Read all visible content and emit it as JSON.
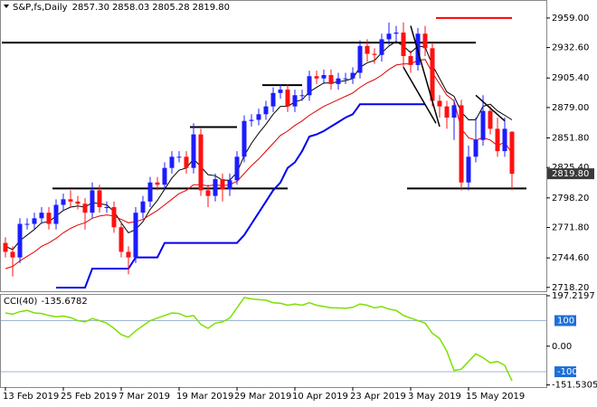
{
  "chart_data": [
    {
      "type": "candlestick",
      "symbol": "S&P,fs,Daily",
      "header_ohlc": [
        "2857.30",
        "2858.03",
        "2805.28",
        "2819.80"
      ],
      "last_label": "2819.80",
      "up_color": "#1c1cff",
      "down_color": "#ff1010",
      "categories": [
        "13 Feb 2019",
        null,
        null,
        null,
        null,
        null,
        null,
        null,
        "25 Feb 2019",
        null,
        null,
        null,
        null,
        null,
        null,
        null,
        "7 Mar 2019",
        null,
        null,
        null,
        null,
        null,
        null,
        null,
        "19 Mar 2019",
        null,
        null,
        null,
        null,
        null,
        null,
        null,
        "29 Mar 2019",
        null,
        null,
        null,
        null,
        null,
        null,
        null,
        "10 Apr 2019",
        null,
        null,
        null,
        null,
        null,
        null,
        null,
        "23 Apr 2019",
        null,
        null,
        null,
        null,
        null,
        null,
        null,
        "3 May 2019",
        null,
        null,
        null,
        null,
        null,
        null,
        null,
        "15 May 2019",
        null,
        null,
        null,
        null,
        null,
        null
      ],
      "open": [
        2758,
        2750,
        2745,
        2775,
        2775,
        2780,
        2785,
        2775,
        2792,
        2797,
        2795,
        2793,
        2785,
        2805,
        2790,
        2790,
        2772,
        2750,
        2745,
        2785,
        2795,
        2812,
        2810,
        2825,
        2835,
        2835,
        2825,
        2855,
        2805,
        2800,
        2815,
        2806,
        2814,
        2835,
        2867,
        2868,
        2873,
        2880,
        2892,
        2895,
        2880,
        2890,
        2890,
        2907,
        2905,
        2908,
        2900,
        2905,
        2905,
        2910,
        2934,
        2927,
        2926,
        2940,
        2945,
        2946,
        2925,
        2917,
        2945,
        2932,
        2885,
        2880,
        2870,
        2881,
        2812,
        2835,
        2850,
        2876,
        2860,
        2840,
        2857.3
      ],
      "high": [
        2763,
        2755,
        2780,
        2780,
        2785,
        2790,
        2790,
        2797,
        2802,
        2805,
        2800,
        2798,
        2812,
        2810,
        2795,
        2795,
        2777,
        2755,
        2790,
        2800,
        2817,
        2817,
        2830,
        2840,
        2840,
        2840,
        2865,
        2860,
        2810,
        2820,
        2820,
        2820,
        2840,
        2872,
        2873,
        2878,
        2885,
        2897,
        2900,
        2900,
        2895,
        2895,
        2912,
        2912,
        2913,
        2913,
        2910,
        2910,
        2915,
        2939,
        2940,
        2932,
        2945,
        2955,
        2952,
        2955,
        2930,
        2950,
        2952,
        2937,
        2890,
        2885,
        2886,
        2886,
        2845,
        2870,
        2890,
        2880,
        2870,
        2870,
        2858.03
      ],
      "low": [
        2745,
        2728,
        2740,
        2770,
        2770,
        2775,
        2770,
        2770,
        2787,
        2790,
        2788,
        2770,
        2780,
        2785,
        2785,
        2767,
        2745,
        2730,
        2740,
        2780,
        2790,
        2805,
        2805,
        2820,
        2830,
        2820,
        2820,
        2800,
        2790,
        2795,
        2795,
        2800,
        2810,
        2830,
        2862,
        2863,
        2868,
        2875,
        2887,
        2875,
        2875,
        2885,
        2885,
        2900,
        2900,
        2895,
        2895,
        2900,
        2900,
        2905,
        2920,
        2918,
        2920,
        2935,
        2938,
        2915,
        2910,
        2912,
        2925,
        2880,
        2870,
        2860,
        2850,
        2805,
        2805,
        2830,
        2845,
        2855,
        2835,
        2835,
        2805.28
      ],
      "close": [
        2750,
        2745,
        2775,
        2775,
        2780,
        2785,
        2775,
        2792,
        2797,
        2795,
        2793,
        2785,
        2805,
        2790,
        2790,
        2772,
        2750,
        2745,
        2785,
        2795,
        2812,
        2810,
        2825,
        2835,
        2835,
        2825,
        2855,
        2805,
        2800,
        2815,
        2806,
        2814,
        2835,
        2867,
        2868,
        2873,
        2880,
        2892,
        2895,
        2880,
        2890,
        2890,
        2907,
        2905,
        2908,
        2900,
        2905,
        2905,
        2910,
        2934,
        2927,
        2926,
        2940,
        2945,
        2946,
        2925,
        2917,
        2945,
        2932,
        2885,
        2880,
        2870,
        2881,
        2812,
        2835,
        2850,
        2876,
        2860,
        2840,
        2860,
        2819.8
      ],
      "series": [
        {
          "color": "#000000",
          "width": 1,
          "values": [
            2755,
            2752,
            2760,
            2765,
            2770,
            2776,
            2777,
            2782,
            2787,
            2790,
            2791,
            2790,
            2794,
            2793,
            2792,
            2786,
            2776,
            2767,
            2770,
            2777,
            2788,
            2796,
            2806,
            2816,
            2823,
            2825,
            2833,
            2826,
            2819,
            2818,
            2814,
            2814,
            2821,
            2836,
            2847,
            2856,
            2864,
            2873,
            2880,
            2880,
            2884,
            2886,
            2893,
            2897,
            2901,
            2901,
            2902,
            2903,
            2905,
            2915,
            2919,
            2921,
            2928,
            2934,
            2938,
            2934,
            2928,
            2934,
            2933,
            2917,
            2905,
            2893,
            2889,
            2875,
            2868,
            2868,
            2880,
            2882,
            2876,
            2872,
            2868
          ]
        },
        {
          "color": "#e00000",
          "width": 1,
          "values": [
            2735,
            2737,
            2742,
            2746,
            2750,
            2755,
            2758,
            2762,
            2767,
            2771,
            2774,
            2776,
            2780,
            2782,
            2783,
            2782,
            2779,
            2776,
            2777,
            2779,
            2783,
            2787,
            2792,
            2797,
            2802,
            2805,
            2810,
            2810,
            2809,
            2810,
            2809,
            2810,
            2813,
            2820,
            2827,
            2833,
            2840,
            2847,
            2854,
            2858,
            2863,
            2867,
            2872,
            2876,
            2880,
            2883,
            2886,
            2889,
            2892,
            2897,
            2901,
            2904,
            2908,
            2913,
            2917,
            2918,
            2918,
            2921,
            2922,
            2910,
            2900,
            2890,
            2885,
            2860,
            2852,
            2850,
            2852,
            2850,
            2845,
            2848,
            2838
          ]
        },
        {
          "color": "#0000ee",
          "width": 2,
          "values": [
            null,
            null,
            null,
            null,
            null,
            null,
            null,
            2718,
            2718,
            2718,
            2718,
            2718,
            2735,
            2735,
            2735,
            2735,
            2735,
            2735,
            2745,
            2745,
            2745,
            2745,
            2758,
            2758,
            2758,
            2758,
            2758,
            2758,
            2758,
            2758,
            2758,
            2758,
            2758,
            2765,
            2775,
            2785,
            2795,
            2805,
            2812,
            2825,
            2830,
            2840,
            2853,
            2855,
            2858,
            2862,
            2866,
            2870,
            2873,
            2882,
            2882,
            2882,
            2882,
            2882,
            2882,
            2882,
            2882,
            2882,
            2882,
            null,
            null,
            null,
            null,
            null,
            null,
            null,
            null,
            null,
            null,
            null,
            null
          ]
        }
      ],
      "hlines": [
        {
          "value": 2937,
          "from": 0,
          "to": 65,
          "color": "#000000"
        },
        {
          "value": 2959,
          "from": 60,
          "to": 70,
          "color": "#ff0000"
        },
        {
          "value": 2899,
          "from": 36,
          "to": 41,
          "color": "#000000"
        },
        {
          "value": 2861.5,
          "from": 26,
          "to": 32,
          "color": "#000000"
        },
        {
          "value": 2806.7,
          "from": 7,
          "to": 39,
          "color": "#000000"
        },
        {
          "value": 2806.7,
          "from": 56,
          "to": 72,
          "color": "#000000"
        }
      ],
      "trendlines": [
        {
          "x": [
            56,
            60
          ],
          "y": [
            2952,
            2862
          ]
        },
        {
          "x": [
            55,
            59.5
          ],
          "y": [
            2915,
            2865
          ]
        },
        {
          "x": [
            65,
            69
          ],
          "y": [
            2890,
            2867
          ]
        }
      ],
      "ylim": [
        2714.8,
        2974.3
      ],
      "yticks": [
        {
          "value": 2959,
          "label": "2959.00"
        },
        {
          "value": 2932.6,
          "label": "2932.60"
        },
        {
          "value": 2905.4,
          "label": "2905.40"
        },
        {
          "value": 2879,
          "label": "2879.00"
        },
        {
          "value": 2851.8,
          "label": "2851.80"
        },
        {
          "value": 2825.4,
          "label": "2825.40"
        },
        {
          "value": 2798.2,
          "label": "2798.20"
        },
        {
          "value": 2771.8,
          "label": "2771.80"
        },
        {
          "value": 2744.6,
          "label": "2744.60"
        },
        {
          "value": 2718.2,
          "label": "2718.20"
        }
      ]
    },
    {
      "type": "line",
      "title": "CCI(40)",
      "series": [
        {
          "color": "#7de000",
          "values": [
            130,
            125,
            135,
            140,
            130,
            128,
            120,
            115,
            118,
            112,
            100,
            95,
            108,
            100,
            90,
            70,
            45,
            35,
            60,
            80,
            100,
            110,
            120,
            130,
            128,
            115,
            120,
            85,
            70,
            90,
            95,
            110,
            150,
            190,
            185,
            182,
            180,
            170,
            168,
            160,
            165,
            160,
            170,
            160,
            155,
            150,
            150,
            148,
            152,
            165,
            160,
            150,
            155,
            145,
            140,
            120,
            110,
            100,
            90,
            50,
            30,
            -20,
            -95,
            -90,
            -60,
            -30,
            -45,
            -65,
            -60,
            -75,
            -135.6782
          ]
        }
      ],
      "levels": [
        100,
        -100
      ],
      "level_color": "#1e6fd9",
      "ylim": [
        -160,
        197.2197
      ],
      "yticks": [
        197.2197,
        {
          "value": 0,
          "label": "0.00"
        },
        -151.5305
      ]
    }
  ]
}
